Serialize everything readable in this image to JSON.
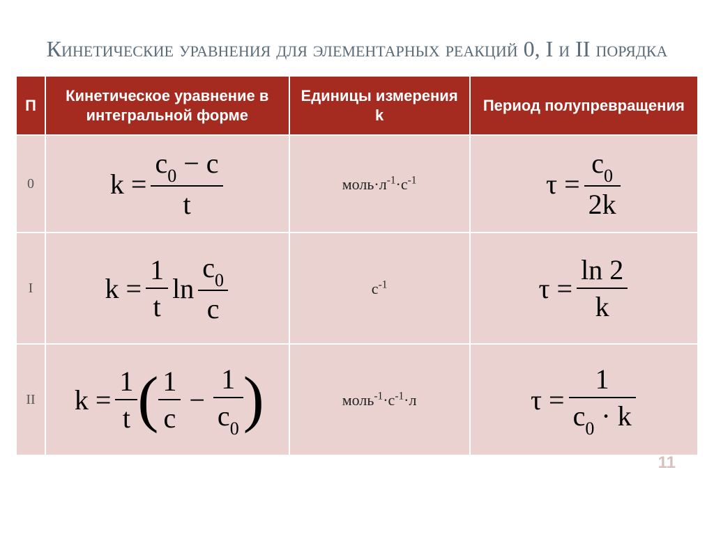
{
  "title": "Кинетические уравнения для элементарных реакций 0, I и II порядка",
  "headers": {
    "order": "П",
    "equation": "Кинетическое уравнение в интегральной форме",
    "units": "Единицы измерения k",
    "halflife": "Период полупревращения"
  },
  "rows": [
    {
      "order": "0",
      "equation": {
        "lhs": "k =",
        "num": "c₀ − c",
        "den": "t"
      },
      "units_html": "моль·л<sup>-1</sup>·с<sup>-1</sup>",
      "halflife": {
        "lhs": "τ =",
        "num": "c₀",
        "den": "2k"
      }
    },
    {
      "order": "I",
      "equation": {
        "lhs": "k =",
        "f1": {
          "num": "1",
          "den": "t"
        },
        "mid": "ln",
        "f2": {
          "num": "c₀",
          "den": "c"
        }
      },
      "units_html": "с<sup>-1</sup>",
      "halflife": {
        "lhs": "τ =",
        "num": "ln 2",
        "den": "k"
      }
    },
    {
      "order": "II",
      "equation": {
        "lhs": "k =",
        "f1": {
          "num": "1",
          "den": "t"
        },
        "paren": {
          "a": {
            "num": "1",
            "den": "c"
          },
          "op": "−",
          "b": {
            "num": "1",
            "den": "c₀"
          }
        }
      },
      "units_html": "моль<sup>-1</sup>·с<sup>-1</sup>·л",
      "halflife": {
        "lhs": "τ =",
        "num": "1",
        "den": "c₀ · k"
      }
    }
  ],
  "page_number": "11",
  "style": {
    "header_bg": "#a52a20",
    "header_color": "#ffffff",
    "cell_bg": "#e9d2d0",
    "title_color": "#5a6b7a",
    "pagenum_color": "#d7c0be"
  }
}
